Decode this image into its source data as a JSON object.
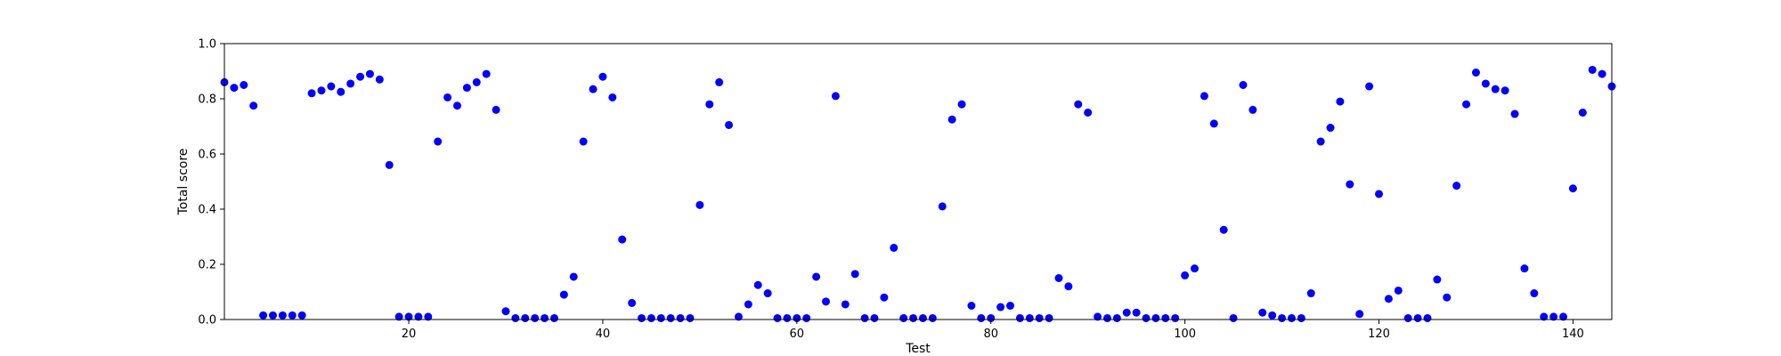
{
  "chart_data": {
    "type": "scatter",
    "title": "",
    "xlabel": "Test",
    "ylabel": "Total score",
    "xlim": [
      1,
      144
    ],
    "ylim": [
      0,
      1
    ],
    "xticks": [
      20,
      40,
      60,
      80,
      100,
      120,
      140
    ],
    "yticks": [
      0.0,
      0.2,
      0.4,
      0.6,
      0.8,
      1.0
    ],
    "xtick_labels": [
      "20",
      "40",
      "60",
      "80",
      "100",
      "120",
      "140"
    ],
    "ytick_labels": [
      "0.0",
      "0.2",
      "0.4",
      "0.6",
      "0.8",
      "1.0"
    ],
    "grid": false,
    "legend": "none",
    "marker_color": "#0000ff",
    "series": [
      {
        "x": [
          1,
          2,
          3,
          4,
          5,
          6,
          7,
          8,
          9,
          10,
          11,
          12,
          13,
          14,
          15,
          16,
          17,
          18,
          19,
          20,
          21,
          22,
          23,
          24,
          25,
          26,
          27,
          28,
          29,
          30,
          31,
          32,
          33,
          34,
          35,
          36,
          37,
          38,
          39,
          40,
          41,
          42,
          43,
          44,
          45,
          46,
          47,
          48,
          49,
          50,
          51,
          52,
          53,
          54,
          55,
          56,
          57,
          58,
          59,
          60,
          61,
          62,
          63,
          64,
          65,
          66,
          67,
          68,
          69,
          70,
          71,
          72,
          73,
          74,
          75,
          76,
          77,
          78,
          79,
          80,
          81,
          82,
          83,
          84,
          85,
          86,
          87,
          88,
          89,
          90,
          91,
          92,
          93,
          94,
          95,
          96,
          97,
          98,
          99,
          100,
          101,
          102,
          103,
          104,
          105,
          106,
          107,
          108,
          109,
          110,
          111,
          112,
          113,
          114,
          115,
          116,
          117,
          118,
          119,
          120,
          121,
          122,
          123,
          124,
          125,
          126,
          127,
          128,
          129,
          130,
          131,
          132,
          133,
          134,
          135,
          136,
          137,
          138,
          139,
          140,
          141,
          142,
          143,
          144
        ],
        "y": [
          0.86,
          0.84,
          0.85,
          0.775,
          0.015,
          0.015,
          0.015,
          0.015,
          0.015,
          0.82,
          0.83,
          0.845,
          0.825,
          0.855,
          0.88,
          0.89,
          0.87,
          0.56,
          0.01,
          0.01,
          0.01,
          0.01,
          0.645,
          0.805,
          0.775,
          0.84,
          0.86,
          0.89,
          0.76,
          0.03,
          0.005,
          0.005,
          0.005,
          0.005,
          0.005,
          0.09,
          0.155,
          0.645,
          0.835,
          0.88,
          0.805,
          0.29,
          0.06,
          0.005,
          0.005,
          0.005,
          0.005,
          0.005,
          0.005,
          0.415,
          0.78,
          0.86,
          0.705,
          0.01,
          0.055,
          0.125,
          0.095,
          0.005,
          0.005,
          0.005,
          0.005,
          0.155,
          0.065,
          0.81,
          0.055,
          0.165,
          0.005,
          0.005,
          0.08,
          0.26,
          0.005,
          0.005,
          0.005,
          0.005,
          0.41,
          0.725,
          0.78,
          0.05,
          0.005,
          0.005,
          0.045,
          0.05,
          0.005,
          0.005,
          0.005,
          0.005,
          0.15,
          0.12,
          0.78,
          0.75,
          0.01,
          0.005,
          0.005,
          0.025,
          0.025,
          0.005,
          0.005,
          0.005,
          0.005,
          0.16,
          0.185,
          0.81,
          0.71,
          0.325,
          0.005,
          0.85,
          0.76,
          0.025,
          0.015,
          0.005,
          0.005,
          0.005,
          0.095,
          0.645,
          0.695,
          0.79,
          0.49,
          0.02,
          0.845,
          0.455,
          0.075,
          0.105,
          0.005,
          0.005,
          0.005,
          0.145,
          0.08,
          0.485,
          0.78,
          0.895,
          0.855,
          0.835,
          0.83,
          0.745,
          0.185,
          0.095,
          0.01,
          0.01,
          0.01,
          0.475,
          0.75,
          0.905,
          0.89,
          0.845
        ]
      }
    ]
  }
}
